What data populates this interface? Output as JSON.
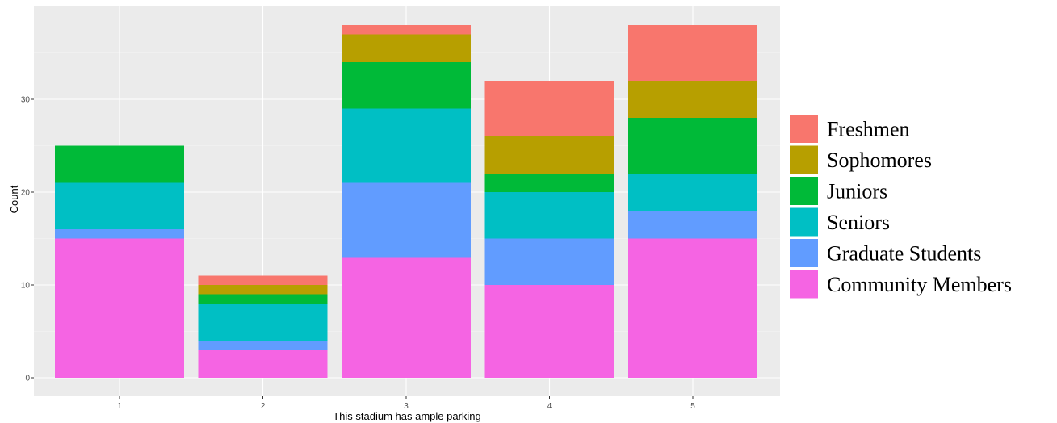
{
  "chart_data": {
    "type": "bar",
    "stacked": true,
    "title": "",
    "xlabel": "This stadium has ample parking",
    "ylabel": "Count",
    "categories": [
      "1",
      "2",
      "3",
      "4",
      "5"
    ],
    "ylim": [
      0,
      38
    ],
    "yticks": [
      0,
      10,
      20,
      30
    ],
    "grid": true,
    "panel_background": "#ebebeb",
    "legend_position": "right",
    "series": [
      {
        "name": "Community Members",
        "color": "#f564e3",
        "values": [
          15,
          3,
          13,
          10,
          15
        ]
      },
      {
        "name": "Graduate Students",
        "color": "#619cff",
        "values": [
          1,
          1,
          8,
          5,
          3
        ]
      },
      {
        "name": "Seniors",
        "color": "#00bfc4",
        "values": [
          5,
          4,
          8,
          5,
          4
        ]
      },
      {
        "name": "Juniors",
        "color": "#00ba38",
        "values": [
          4,
          1,
          5,
          2,
          6
        ]
      },
      {
        "name": "Sophomores",
        "color": "#b79f00",
        "values": [
          0,
          1,
          3,
          4,
          4
        ]
      },
      {
        "name": "Freshmen",
        "color": "#f8766d",
        "values": [
          0,
          1,
          1,
          6,
          6
        ]
      }
    ],
    "legend_order": [
      "Freshmen",
      "Sophomores",
      "Juniors",
      "Seniors",
      "Graduate Students",
      "Community Members"
    ]
  }
}
